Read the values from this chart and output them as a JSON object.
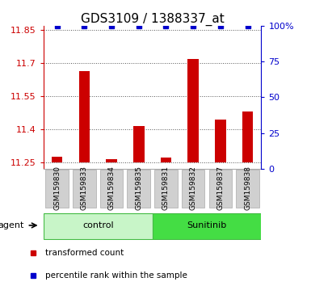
{
  "title": "GDS3109 / 1388337_at",
  "samples": [
    "GSM159830",
    "GSM159833",
    "GSM159834",
    "GSM159835",
    "GSM159831",
    "GSM159832",
    "GSM159837",
    "GSM159838"
  ],
  "bar_values": [
    11.275,
    11.665,
    11.265,
    11.415,
    11.27,
    11.72,
    11.445,
    11.48
  ],
  "percentile_values": [
    100,
    100,
    100,
    100,
    100,
    100,
    100,
    100
  ],
  "bar_baseline": 11.25,
  "ylim_left": [
    11.22,
    11.87
  ],
  "ylim_right": [
    0,
    100
  ],
  "yticks_left": [
    11.25,
    11.4,
    11.55,
    11.7,
    11.85
  ],
  "yticks_right": [
    0,
    25,
    50,
    75,
    100
  ],
  "groups": [
    {
      "label": "control",
      "indices": [
        0,
        1,
        2,
        3
      ],
      "color": "#c8f5c8",
      "border": "#44bb44"
    },
    {
      "label": "Sunitinib",
      "indices": [
        4,
        5,
        6,
        7
      ],
      "color": "#44dd44",
      "border": "#44bb44"
    }
  ],
  "group_row_label": "agent",
  "bar_color": "#cc0000",
  "percentile_color": "#0000cc",
  "percentile_marker": "s",
  "percentile_markersize": 4,
  "background_color": "#ffffff",
  "plot_bg_color": "#ffffff",
  "label_bg_color": "#d0d0d0",
  "dotted_line_color": "#555555",
  "left_axis_color": "#cc0000",
  "right_axis_color": "#0000cc",
  "title_fontsize": 11,
  "tick_fontsize": 8,
  "legend_fontsize": 7.5,
  "group_label_fontsize": 8,
  "sample_label_fontsize": 6.5,
  "bar_width": 0.4
}
